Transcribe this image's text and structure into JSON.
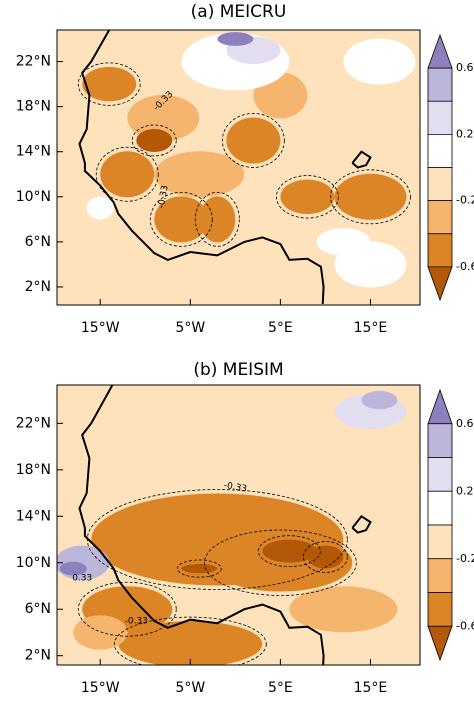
{
  "panels": [
    {
      "title": "(a) MEICRU",
      "lat_labels": [
        "22°N",
        "18°N",
        "14°N",
        "10°N",
        "6°N",
        "2°N"
      ],
      "lon_labels": [
        "15°W",
        "5°W",
        "5°E",
        "15°E"
      ],
      "contour_labels": [
        "-0.33",
        "-0.33"
      ]
    },
    {
      "title": "(b) MEISIM",
      "lat_labels": [
        "22°N",
        "18°N",
        "14°N",
        "10°N",
        "6°N",
        "2°N"
      ],
      "lon_labels": [
        "15°W",
        "5°W",
        "5°E",
        "15°E"
      ],
      "contour_labels": [
        "-0.33",
        "0.33",
        "-0.33"
      ]
    }
  ],
  "colorbar": {
    "labels": [
      "0.6",
      "0.2",
      "-0.2",
      "-0.6"
    ]
  }
}
